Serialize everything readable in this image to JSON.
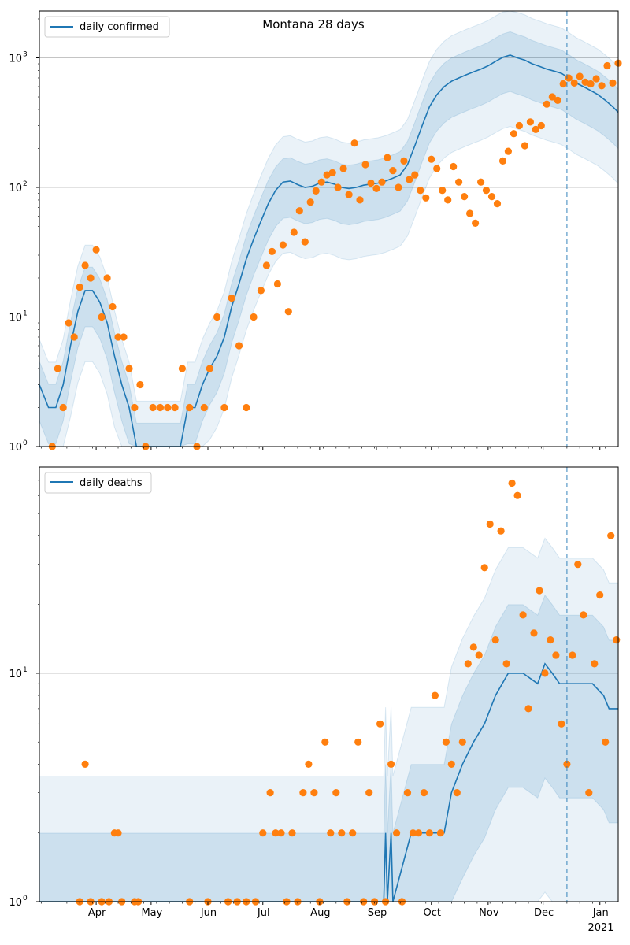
{
  "chart_data": [
    {
      "type": "line",
      "title": "Montana 28 days",
      "yscale": "log",
      "ylim": [
        1,
        2300
      ],
      "xlim": [
        "2020-03-01",
        "2021-01-11"
      ],
      "grid": "y-major",
      "legend": {
        "position": "top-left",
        "entries": [
          "daily confirmed"
        ]
      },
      "y_ticks": [
        {
          "value": 1,
          "label": "10",
          "exp": "0"
        },
        {
          "value": 10,
          "label": "10",
          "exp": "1"
        },
        {
          "value": 100,
          "label": "10",
          "exp": "2"
        },
        {
          "value": 1000,
          "label": "10",
          "exp": "3"
        }
      ],
      "forecast_start": "2020-12-14",
      "series": [
        {
          "name": "daily confirmed",
          "kind": "median-line",
          "color": "#1f77b4",
          "x": [
            "2020-03-01",
            "2020-03-06",
            "2020-03-10",
            "2020-03-14",
            "2020-03-18",
            "2020-03-22",
            "2020-03-26",
            "2020-03-30",
            "2020-04-03",
            "2020-04-07",
            "2020-04-11",
            "2020-04-15",
            "2020-04-19",
            "2020-04-23",
            "2020-04-27",
            "2020-05-01",
            "2020-05-05",
            "2020-05-09",
            "2020-05-13",
            "2020-05-17",
            "2020-05-21",
            "2020-05-25",
            "2020-05-29",
            "2020-06-02",
            "2020-06-06",
            "2020-06-10",
            "2020-06-14",
            "2020-06-18",
            "2020-06-22",
            "2020-06-26",
            "2020-06-30",
            "2020-07-04",
            "2020-07-08",
            "2020-07-12",
            "2020-07-16",
            "2020-07-20",
            "2020-07-24",
            "2020-07-28",
            "2020-08-01",
            "2020-08-05",
            "2020-08-09",
            "2020-08-13",
            "2020-08-17",
            "2020-08-21",
            "2020-08-25",
            "2020-08-29",
            "2020-09-02",
            "2020-09-06",
            "2020-09-10",
            "2020-09-14",
            "2020-09-18",
            "2020-09-22",
            "2020-09-26",
            "2020-09-30",
            "2020-10-04",
            "2020-10-08",
            "2020-10-12",
            "2020-10-16",
            "2020-10-20",
            "2020-10-24",
            "2020-10-28",
            "2020-11-01",
            "2020-11-05",
            "2020-11-09",
            "2020-11-13",
            "2020-11-17",
            "2020-11-21",
            "2020-11-25",
            "2020-11-29",
            "2020-12-03",
            "2020-12-07",
            "2020-12-11",
            "2020-12-15",
            "2020-12-19",
            "2020-12-23",
            "2020-12-27",
            "2020-12-31",
            "2021-01-04",
            "2021-01-08",
            "2021-01-11"
          ],
          "values": [
            3,
            2,
            2,
            3,
            6,
            11,
            16,
            16,
            13,
            9,
            5,
            3,
            2,
            1,
            1,
            1,
            1,
            1,
            1,
            1,
            2,
            2,
            3,
            4,
            5,
            7,
            12,
            18,
            28,
            40,
            55,
            75,
            95,
            110,
            112,
            105,
            100,
            102,
            108,
            110,
            106,
            100,
            98,
            100,
            104,
            106,
            108,
            112,
            118,
            125,
            150,
            210,
            300,
            420,
            520,
            600,
            660,
            700,
            740,
            780,
            820,
            870,
            940,
            1010,
            1050,
            1000,
            960,
            900,
            860,
            820,
            790,
            760,
            700,
            640,
            600,
            560,
            520,
            470,
            420,
            380
          ]
        },
        {
          "name": "",
          "kind": "observed-points",
          "color": "#ff7f0e",
          "x": [
            "2020-03-08",
            "2020-03-11",
            "2020-03-14",
            "2020-03-17",
            "2020-03-20",
            "2020-03-23",
            "2020-03-26",
            "2020-03-29",
            "2020-04-01",
            "2020-04-04",
            "2020-04-07",
            "2020-04-10",
            "2020-04-13",
            "2020-04-16",
            "2020-04-19",
            "2020-04-22",
            "2020-04-25",
            "2020-04-28",
            "2020-05-02",
            "2020-05-06",
            "2020-05-10",
            "2020-05-14",
            "2020-05-18",
            "2020-05-22",
            "2020-05-26",
            "2020-05-30",
            "2020-06-02",
            "2020-06-06",
            "2020-06-10",
            "2020-06-14",
            "2020-06-18",
            "2020-06-22",
            "2020-06-26",
            "2020-06-30",
            "2020-07-03",
            "2020-07-06",
            "2020-07-09",
            "2020-07-12",
            "2020-07-15",
            "2020-07-18",
            "2020-07-21",
            "2020-07-24",
            "2020-07-27",
            "2020-07-30",
            "2020-08-02",
            "2020-08-05",
            "2020-08-08",
            "2020-08-11",
            "2020-08-14",
            "2020-08-17",
            "2020-08-20",
            "2020-08-23",
            "2020-08-26",
            "2020-08-29",
            "2020-09-01",
            "2020-09-04",
            "2020-09-07",
            "2020-09-10",
            "2020-09-13",
            "2020-09-16",
            "2020-09-19",
            "2020-09-22",
            "2020-09-25",
            "2020-09-28",
            "2020-10-01",
            "2020-10-04",
            "2020-10-07",
            "2020-10-10",
            "2020-10-13",
            "2020-10-16",
            "2020-10-19",
            "2020-10-22",
            "2020-10-25",
            "2020-10-28",
            "2020-10-31",
            "2020-11-03",
            "2020-11-06",
            "2020-11-09",
            "2020-11-12",
            "2020-11-15",
            "2020-11-18",
            "2020-11-21",
            "2020-11-24",
            "2020-11-27",
            "2020-11-30",
            "2020-12-03",
            "2020-12-06",
            "2020-12-09",
            "2020-12-12",
            "2020-12-15",
            "2020-12-18",
            "2020-12-21",
            "2020-12-24",
            "2020-12-27",
            "2020-12-30",
            "2021-01-02",
            "2021-01-05",
            "2021-01-08",
            "2021-01-11"
          ],
          "values": [
            1,
            4,
            2,
            9,
            7,
            17,
            25,
            20,
            33,
            10,
            20,
            12,
            7,
            7,
            4,
            2,
            3,
            1,
            2,
            2,
            2,
            2,
            4,
            2,
            1,
            2,
            4,
            10,
            2,
            14,
            6,
            2,
            10,
            16,
            25,
            32,
            18,
            36,
            11,
            45,
            66,
            38,
            77,
            94,
            110,
            125,
            130,
            100,
            140,
            88,
            220,
            80,
            150,
            108,
            98,
            110,
            170,
            135,
            100,
            160,
            115,
            125,
            95,
            83,
            165,
            140,
            95,
            80,
            145,
            110,
            85,
            63,
            53,
            110,
            95,
            85,
            75,
            160,
            190,
            260,
            300,
            210,
            320,
            280,
            300,
            440,
            500,
            470,
            630,
            700,
            640,
            720,
            650,
            630,
            690,
            610,
            870,
            640,
            910
          ]
        }
      ]
    },
    {
      "type": "line",
      "title": "",
      "yscale": "log",
      "ylim": [
        1,
        80
      ],
      "xlim": [
        "2020-03-01",
        "2021-01-11"
      ],
      "grid": "y-major",
      "legend": {
        "position": "top-left",
        "entries": [
          "daily deaths"
        ]
      },
      "y_ticks": [
        {
          "value": 1,
          "label": "10",
          "exp": "0"
        },
        {
          "value": 10,
          "label": "10",
          "exp": "1"
        }
      ],
      "x_ticks": [
        {
          "date": "2020-04-01",
          "label": "Apr"
        },
        {
          "date": "2020-05-01",
          "label": "May"
        },
        {
          "date": "2020-06-01",
          "label": "Jun"
        },
        {
          "date": "2020-07-01",
          "label": "Jul"
        },
        {
          "date": "2020-08-01",
          "label": "Aug"
        },
        {
          "date": "2020-09-01",
          "label": "Sep"
        },
        {
          "date": "2020-10-01",
          "label": "Oct"
        },
        {
          "date": "2020-11-01",
          "label": "Nov"
        },
        {
          "date": "2020-12-01",
          "label": "Dec"
        },
        {
          "date": "2021-01-01",
          "label": "Jan"
        }
      ],
      "year_label": "2021",
      "forecast_start": "2020-12-14",
      "series": [
        {
          "name": "daily deaths",
          "kind": "median-line",
          "color": "#1f77b4",
          "x": [
            "2020-03-01",
            "2020-07-01",
            "2020-08-01",
            "2020-09-01",
            "2020-09-05",
            "2020-09-06",
            "2020-09-07",
            "2020-09-09",
            "2020-09-10",
            "2020-09-20",
            "2020-10-01",
            "2020-10-08",
            "2020-10-12",
            "2020-10-18",
            "2020-10-24",
            "2020-10-30",
            "2020-11-05",
            "2020-11-12",
            "2020-11-20",
            "2020-11-28",
            "2020-12-02",
            "2020-12-06",
            "2020-12-10",
            "2020-12-16",
            "2020-12-22",
            "2020-12-28",
            "2021-01-03",
            "2021-01-06",
            "2021-01-08",
            "2021-01-11"
          ],
          "values": [
            1,
            1,
            1,
            1,
            1,
            2,
            1,
            2,
            1,
            2,
            2,
            2,
            3,
            4,
            5,
            6,
            8,
            10,
            10,
            9,
            11,
            10,
            9,
            9,
            9,
            9,
            8,
            7,
            7,
            7
          ]
        },
        {
          "name": "",
          "kind": "observed-points",
          "color": "#ff7f0e",
          "x": [
            "2020-03-23",
            "2020-03-26",
            "2020-03-29",
            "2020-04-04",
            "2020-04-08",
            "2020-04-11",
            "2020-04-13",
            "2020-04-15",
            "2020-04-22",
            "2020-04-24",
            "2020-05-22",
            "2020-06-01",
            "2020-06-12",
            "2020-06-17",
            "2020-06-22",
            "2020-06-27",
            "2020-07-01",
            "2020-07-05",
            "2020-07-08",
            "2020-07-11",
            "2020-07-14",
            "2020-07-17",
            "2020-07-20",
            "2020-07-23",
            "2020-07-26",
            "2020-07-29",
            "2020-08-01",
            "2020-08-04",
            "2020-08-07",
            "2020-08-10",
            "2020-08-13",
            "2020-08-16",
            "2020-08-19",
            "2020-08-22",
            "2020-08-25",
            "2020-08-28",
            "2020-08-31",
            "2020-09-03",
            "2020-09-06",
            "2020-09-09",
            "2020-09-12",
            "2020-09-15",
            "2020-09-18",
            "2020-09-21",
            "2020-09-24",
            "2020-09-27",
            "2020-09-30",
            "2020-10-03",
            "2020-10-06",
            "2020-10-09",
            "2020-10-12",
            "2020-10-15",
            "2020-10-18",
            "2020-10-21",
            "2020-10-24",
            "2020-10-27",
            "2020-10-30",
            "2020-11-02",
            "2020-11-05",
            "2020-11-08",
            "2020-11-11",
            "2020-11-14",
            "2020-11-17",
            "2020-11-20",
            "2020-11-23",
            "2020-11-26",
            "2020-11-29",
            "2020-12-02",
            "2020-12-05",
            "2020-12-08",
            "2020-12-11",
            "2020-12-14",
            "2020-12-17",
            "2020-12-20",
            "2020-12-23",
            "2020-12-26",
            "2020-12-29",
            "2021-01-01",
            "2021-01-04",
            "2021-01-07",
            "2021-01-10"
          ],
          "values": [
            1,
            4,
            1,
            1,
            1,
            2,
            2,
            1,
            1,
            1,
            1,
            1,
            1,
            1,
            1,
            1,
            2,
            3,
            2,
            2,
            1,
            2,
            1,
            3,
            4,
            3,
            1,
            5,
            2,
            3,
            2,
            1,
            2,
            5,
            1,
            3,
            1,
            6,
            1,
            4,
            2,
            1,
            3,
            2,
            2,
            3,
            2,
            8,
            2,
            5,
            4,
            3,
            5,
            11,
            13,
            12,
            29,
            45,
            14,
            42,
            11,
            68,
            60,
            18,
            7,
            15,
            23,
            10,
            14,
            12,
            6,
            4,
            12,
            30,
            18,
            3,
            11,
            22,
            5,
            40,
            14
          ]
        }
      ]
    }
  ]
}
